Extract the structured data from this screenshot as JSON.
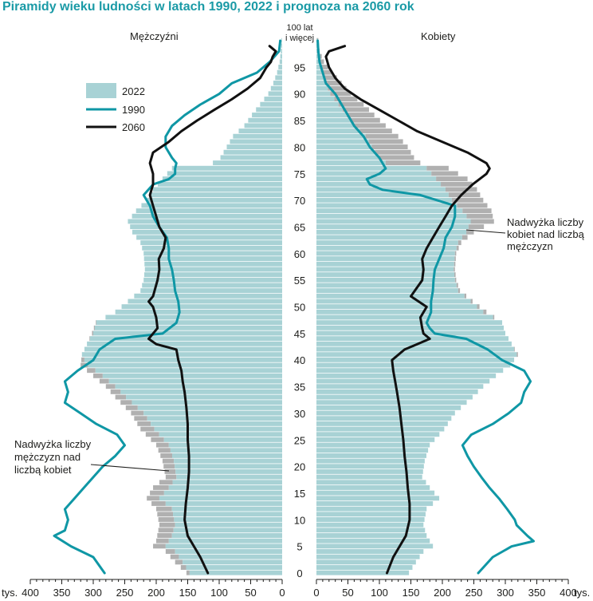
{
  "chart_data": {
    "type": "population-pyramid",
    "title": "Piramidy wieku ludności w latach 1990, 2022 i prognoza na 2060 rok",
    "left_label": "Mężczyźni",
    "right_label": "Kobiety",
    "top_age_label": [
      "100 lat",
      "i więcej"
    ],
    "x_unit_label": "tys.",
    "x_ticks_left": [
      "400",
      "350",
      "300",
      "250",
      "200",
      "150",
      "100",
      "50",
      "0"
    ],
    "x_ticks_right": [
      "0",
      "50",
      "100",
      "150",
      "200",
      "250",
      "300",
      "350",
      "400"
    ],
    "x_tick_values": [
      400,
      350,
      300,
      250,
      200,
      150,
      100,
      50,
      0
    ],
    "xlim": [
      0,
      400
    ],
    "age_ticks": [
      0,
      5,
      10,
      15,
      20,
      25,
      30,
      35,
      40,
      45,
      50,
      55,
      60,
      65,
      70,
      75,
      80,
      85,
      90,
      95
    ],
    "ages": "0..100 (single years, 100 = 100 and over)",
    "colors": {
      "bars_2022": "#a8d2d5",
      "excess": "#b0b0b0",
      "line_1990": "#0f97a5",
      "line_2060": "#111111"
    },
    "legend": [
      {
        "label": "2022",
        "kind": "bar"
      },
      {
        "label": "1990",
        "kind": "line-teal"
      },
      {
        "label": "2060",
        "kind": "line-black"
      }
    ],
    "annotations": {
      "female": [
        "Nadwyżka liczby",
        "kobiet nad liczbą",
        "mężczyzn"
      ],
      "male": [
        "Nadwyżka liczby",
        "mężczyzn nad",
        "liczbą kobiet"
      ]
    },
    "male_2022_knots": [
      [
        0,
        152
      ],
      [
        2,
        170
      ],
      [
        4,
        185
      ],
      [
        5,
        205
      ],
      [
        6,
        200
      ],
      [
        9,
        195
      ],
      [
        12,
        200
      ],
      [
        14,
        215
      ],
      [
        16,
        205
      ],
      [
        18,
        185
      ],
      [
        21,
        190
      ],
      [
        24,
        200
      ],
      [
        27,
        225
      ],
      [
        30,
        240
      ],
      [
        33,
        265
      ],
      [
        35,
        280
      ],
      [
        37,
        300
      ],
      [
        39,
        320
      ],
      [
        41,
        318
      ],
      [
        43,
        310
      ],
      [
        45,
        302
      ],
      [
        47,
        296
      ],
      [
        49,
        265
      ],
      [
        51,
        245
      ],
      [
        53,
        225
      ],
      [
        55,
        220
      ],
      [
        57,
        218
      ],
      [
        60,
        220
      ],
      [
        62,
        225
      ],
      [
        64,
        238
      ],
      [
        66,
        245
      ],
      [
        68,
        232
      ],
      [
        70,
        215
      ],
      [
        72,
        205
      ],
      [
        74,
        190
      ],
      [
        76,
        175
      ],
      [
        77,
        110
      ],
      [
        78,
        98
      ],
      [
        80,
        88
      ],
      [
        82,
        78
      ],
      [
        84,
        60
      ],
      [
        86,
        48
      ],
      [
        88,
        35
      ],
      [
        90,
        22
      ],
      [
        92,
        14
      ],
      [
        94,
        8
      ],
      [
        96,
        4
      ],
      [
        98,
        2
      ],
      [
        100,
        1
      ]
    ],
    "female_2022_knots": [
      [
        0,
        147
      ],
      [
        2,
        158
      ],
      [
        4,
        170
      ],
      [
        5,
        185
      ],
      [
        7,
        175
      ],
      [
        9,
        170
      ],
      [
        12,
        175
      ],
      [
        14,
        195
      ],
      [
        16,
        180
      ],
      [
        18,
        168
      ],
      [
        21,
        172
      ],
      [
        24,
        180
      ],
      [
        27,
        203
      ],
      [
        30,
        220
      ],
      [
        33,
        248
      ],
      [
        35,
        265
      ],
      [
        37,
        285
      ],
      [
        39,
        308
      ],
      [
        41,
        320
      ],
      [
        43,
        310
      ],
      [
        45,
        300
      ],
      [
        47,
        295
      ],
      [
        49,
        270
      ],
      [
        51,
        248
      ],
      [
        53,
        228
      ],
      [
        55,
        222
      ],
      [
        57,
        220
      ],
      [
        60,
        222
      ],
      [
        62,
        230
      ],
      [
        64,
        250
      ],
      [
        66,
        282
      ],
      [
        68,
        278
      ],
      [
        70,
        265
      ],
      [
        72,
        255
      ],
      [
        74,
        240
      ],
      [
        76,
        210
      ],
      [
        77,
        165
      ],
      [
        78,
        155
      ],
      [
        80,
        145
      ],
      [
        82,
        130
      ],
      [
        84,
        110
      ],
      [
        86,
        92
      ],
      [
        88,
        75
      ],
      [
        90,
        55
      ],
      [
        92,
        40
      ],
      [
        94,
        25
      ],
      [
        96,
        12
      ],
      [
        98,
        5
      ],
      [
        100,
        3
      ]
    ],
    "male_1990_knots": [
      [
        0,
        282
      ],
      [
        3,
        300
      ],
      [
        5,
        335
      ],
      [
        7,
        362
      ],
      [
        8,
        345
      ],
      [
        10,
        340
      ],
      [
        12,
        345
      ],
      [
        14,
        330
      ],
      [
        16,
        315
      ],
      [
        18,
        300
      ],
      [
        20,
        285
      ],
      [
        22,
        265
      ],
      [
        24,
        250
      ],
      [
        26,
        262
      ],
      [
        28,
        295
      ],
      [
        30,
        320
      ],
      [
        32,
        345
      ],
      [
        34,
        340
      ],
      [
        36,
        345
      ],
      [
        38,
        325
      ],
      [
        40,
        300
      ],
      [
        42,
        290
      ],
      [
        44,
        265
      ],
      [
        45,
        190
      ],
      [
        47,
        168
      ],
      [
        49,
        163
      ],
      [
        51,
        165
      ],
      [
        53,
        170
      ],
      [
        55,
        172
      ],
      [
        57,
        175
      ],
      [
        59,
        180
      ],
      [
        61,
        180
      ],
      [
        63,
        183
      ],
      [
        65,
        195
      ],
      [
        67,
        205
      ],
      [
        69,
        210
      ],
      [
        71,
        220
      ],
      [
        73,
        205
      ],
      [
        74,
        180
      ],
      [
        75,
        170
      ],
      [
        76,
        170
      ],
      [
        77,
        168
      ],
      [
        78,
        175
      ],
      [
        80,
        185
      ],
      [
        82,
        185
      ],
      [
        84,
        175
      ],
      [
        86,
        155
      ],
      [
        88,
        130
      ],
      [
        90,
        100
      ],
      [
        92,
        80
      ],
      [
        94,
        40
      ],
      [
        96,
        20
      ],
      [
        98,
        5
      ],
      [
        100,
        3
      ]
    ],
    "female_1990_knots": [
      [
        0,
        257
      ],
      [
        3,
        280
      ],
      [
        5,
        310
      ],
      [
        6,
        345
      ],
      [
        7,
        335
      ],
      [
        9,
        318
      ],
      [
        10,
        315
      ],
      [
        12,
        303
      ],
      [
        14,
        290
      ],
      [
        16,
        275
      ],
      [
        18,
        262
      ],
      [
        20,
        250
      ],
      [
        22,
        240
      ],
      [
        24,
        232
      ],
      [
        26,
        246
      ],
      [
        28,
        280
      ],
      [
        30,
        305
      ],
      [
        32,
        325
      ],
      [
        34,
        330
      ],
      [
        36,
        340
      ],
      [
        38,
        330
      ],
      [
        40,
        295
      ],
      [
        42,
        272
      ],
      [
        44,
        238
      ],
      [
        45,
        188
      ],
      [
        46,
        180
      ],
      [
        47,
        175
      ],
      [
        49,
        182
      ],
      [
        51,
        182
      ],
      [
        53,
        185
      ],
      [
        55,
        186
      ],
      [
        57,
        188
      ],
      [
        59,
        195
      ],
      [
        61,
        202
      ],
      [
        63,
        205
      ],
      [
        65,
        215
      ],
      [
        67,
        220
      ],
      [
        69,
        220
      ],
      [
        71,
        165
      ],
      [
        72,
        105
      ],
      [
        73,
        85
      ],
      [
        74,
        80
      ],
      [
        75,
        100
      ],
      [
        76,
        110
      ],
      [
        78,
        100
      ],
      [
        80,
        85
      ],
      [
        82,
        75
      ],
      [
        84,
        60
      ],
      [
        86,
        50
      ],
      [
        88,
        40
      ],
      [
        90,
        30
      ],
      [
        92,
        15
      ],
      [
        94,
        10
      ],
      [
        96,
        5
      ],
      [
        98,
        3
      ],
      [
        100,
        2
      ]
    ],
    "male_2060_knots": [
      [
        0,
        118
      ],
      [
        3,
        130
      ],
      [
        5,
        140
      ],
      [
        7,
        150
      ],
      [
        10,
        155
      ],
      [
        13,
        153
      ],
      [
        16,
        150
      ],
      [
        19,
        148
      ],
      [
        22,
        148
      ],
      [
        25,
        150
      ],
      [
        28,
        150
      ],
      [
        31,
        152
      ],
      [
        34,
        155
      ],
      [
        36,
        158
      ],
      [
        38,
        160
      ],
      [
        40,
        165
      ],
      [
        42,
        168
      ],
      [
        43,
        200
      ],
      [
        44,
        212
      ],
      [
        45,
        205
      ],
      [
        46,
        198
      ],
      [
        48,
        200
      ],
      [
        50,
        205
      ],
      [
        51,
        212
      ],
      [
        52,
        205
      ],
      [
        55,
        198
      ],
      [
        57,
        195
      ],
      [
        59,
        196
      ],
      [
        61,
        188
      ],
      [
        63,
        185
      ],
      [
        65,
        195
      ],
      [
        67,
        200
      ],
      [
        69,
        205
      ],
      [
        71,
        210
      ],
      [
        73,
        205
      ],
      [
        75,
        205
      ],
      [
        77,
        210
      ],
      [
        79,
        205
      ],
      [
        81,
        180
      ],
      [
        83,
        160
      ],
      [
        85,
        135
      ],
      [
        87,
        108
      ],
      [
        89,
        80
      ],
      [
        91,
        55
      ],
      [
        93,
        35
      ],
      [
        95,
        25
      ],
      [
        96,
        18
      ],
      [
        97,
        15
      ],
      [
        98,
        10
      ],
      [
        99,
        20
      ]
    ],
    "female_2060_knots": [
      [
        0,
        112
      ],
      [
        3,
        122
      ],
      [
        5,
        132
      ],
      [
        7,
        142
      ],
      [
        10,
        148
      ],
      [
        13,
        148
      ],
      [
        16,
        145
      ],
      [
        19,
        143
      ],
      [
        22,
        140
      ],
      [
        25,
        138
      ],
      [
        28,
        135
      ],
      [
        31,
        132
      ],
      [
        34,
        128
      ],
      [
        36,
        125
      ],
      [
        38,
        122
      ],
      [
        40,
        120
      ],
      [
        42,
        140
      ],
      [
        43,
        160
      ],
      [
        44,
        180
      ],
      [
        45,
        170
      ],
      [
        46,
        168
      ],
      [
        48,
        165
      ],
      [
        50,
        175
      ],
      [
        52,
        150
      ],
      [
        55,
        168
      ],
      [
        57,
        170
      ],
      [
        59,
        168
      ],
      [
        61,
        175
      ],
      [
        63,
        185
      ],
      [
        65,
        195
      ],
      [
        67,
        205
      ],
      [
        69,
        215
      ],
      [
        71,
        230
      ],
      [
        73,
        248
      ],
      [
        75,
        270
      ],
      [
        76,
        275
      ],
      [
        77,
        270
      ],
      [
        79,
        240
      ],
      [
        81,
        200
      ],
      [
        83,
        160
      ],
      [
        85,
        130
      ],
      [
        87,
        100
      ],
      [
        89,
        70
      ],
      [
        91,
        45
      ],
      [
        93,
        30
      ],
      [
        95,
        20
      ],
      [
        97,
        15
      ],
      [
        98,
        20
      ],
      [
        99,
        45
      ]
    ]
  }
}
